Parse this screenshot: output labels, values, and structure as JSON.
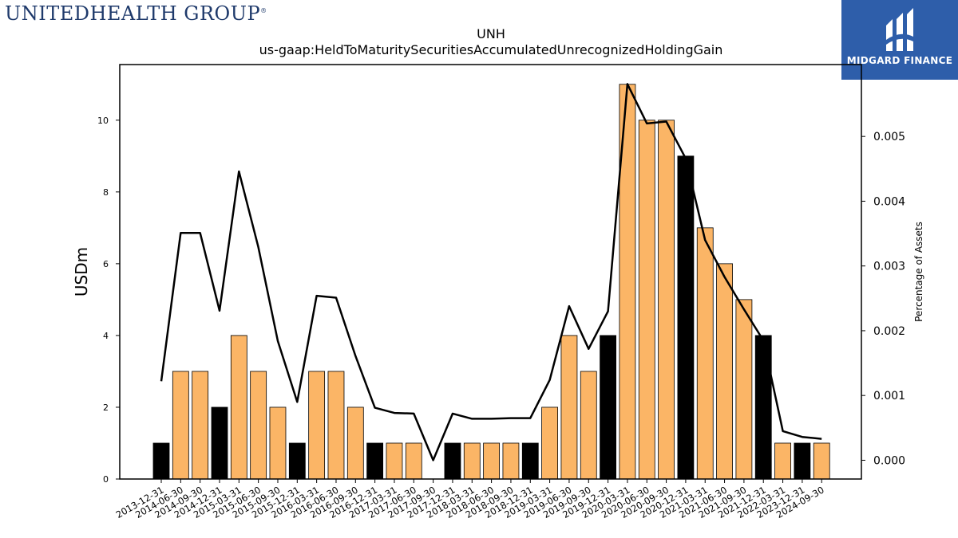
{
  "logos": {
    "left_text": "UNITEDHEALTH GROUP",
    "left_mark": "®",
    "right_text": "MIDGARD FINANCE",
    "right_icon": "midgard-m-icon"
  },
  "colors": {
    "bar_highlight": "#000000",
    "bar_default": "#fbb566",
    "line": "#000000",
    "logo_bg": "#2e5eaa",
    "logo_text_left": "#1f3a6b"
  },
  "chart_data": {
    "type": "bar",
    "title": "UNH",
    "subtitle": "us-gaap:HeldToMaturitySecuritiesAccumulatedUnrecognizedHoldingGain",
    "ylabel": "USDm",
    "y2label": "Percentage of Assets",
    "ylim": [
      0,
      11.55
    ],
    "y2lim": [
      -0.00029,
      0.00611
    ],
    "yticks": [
      0,
      2,
      4,
      6,
      8,
      10
    ],
    "y2ticks": [
      "0.000",
      "0.001",
      "0.002",
      "0.003",
      "0.004",
      "0.005"
    ],
    "y2tick_values": [
      0,
      0.001,
      0.002,
      0.003,
      0.004,
      0.005
    ],
    "categories": [
      "2013-12-31",
      "2014-06-30",
      "2014-09-30",
      "2014-12-31",
      "2015-03-31",
      "2015-06-30",
      "2015-09-30",
      "2015-12-31",
      "2016-03-31",
      "2016-06-30",
      "2016-09-30",
      "2016-12-31",
      "2017-03-31",
      "2017-06-30",
      "2017-09-30",
      "2017-12-31",
      "2018-03-31",
      "2018-06-30",
      "2018-09-30",
      "2018-12-31",
      "2019-03-31",
      "2019-06-30",
      "2019-09-30",
      "2019-12-31",
      "2020-03-31",
      "2020-06-30",
      "2020-09-30",
      "2020-12-31",
      "2021-03-31",
      "2021-06-30",
      "2021-09-30",
      "2021-12-31",
      "2022-03-31",
      "2023-12-31",
      "2024-09-30"
    ],
    "series": [
      {
        "type": "bar",
        "values": [
          1,
          3,
          3,
          2,
          4,
          3,
          2,
          1,
          3,
          3,
          2,
          1,
          1,
          1,
          0,
          1,
          1,
          1,
          1,
          1,
          2,
          4,
          3,
          4,
          11,
          10,
          10,
          9,
          7,
          6,
          5,
          4,
          1,
          1,
          1
        ],
        "highlight": [
          true,
          false,
          false,
          true,
          false,
          false,
          false,
          true,
          false,
          false,
          false,
          true,
          false,
          false,
          false,
          true,
          false,
          false,
          false,
          true,
          false,
          false,
          false,
          true,
          false,
          false,
          false,
          true,
          false,
          false,
          false,
          true,
          false,
          true,
          false
        ]
      },
      {
        "type": "line",
        "axis": "right",
        "values": [
          0.00122,
          0.00351,
          0.00351,
          0.00231,
          0.00446,
          0.00329,
          0.00184,
          0.0009,
          0.00254,
          0.00251,
          0.00161,
          0.00081,
          0.00073,
          0.00072,
          0.0,
          0.00072,
          0.00064,
          0.00064,
          0.00065,
          0.00065,
          0.00124,
          0.00238,
          0.00172,
          0.0023,
          0.00581,
          0.0052,
          0.00523,
          0.00466,
          0.0034,
          0.00283,
          0.00233,
          0.00185,
          0.00045,
          0.00036,
          0.00033
        ]
      }
    ]
  }
}
